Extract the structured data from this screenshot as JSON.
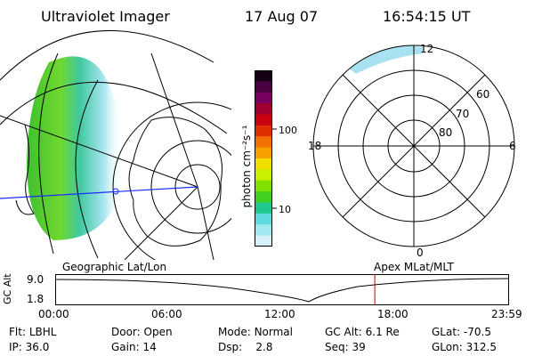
{
  "header": {
    "title": "Ultraviolet Imager",
    "date": "17 Aug 07",
    "time": "16:54:15 UT"
  },
  "colorbar": {
    "unit_label": "photon cm⁻²s⁻¹",
    "ticks": [
      "100",
      "10"
    ],
    "colors": [
      "#140014",
      "#4a0040",
      "#7a0060",
      "#a00030",
      "#c80010",
      "#e03000",
      "#f07000",
      "#f8a000",
      "#f0e000",
      "#c8f000",
      "#80e000",
      "#40d020",
      "#20c890",
      "#60d8e0",
      "#a0e8f0",
      "#d8f0f8"
    ]
  },
  "geo_map": {
    "caption": "Geographic Lat/Lon"
  },
  "polar_map": {
    "caption": "Apex MLat/MLT",
    "mlt_labels": {
      "top": "12",
      "left": "18",
      "right": "6",
      "bottom": "0"
    },
    "lat_labels": [
      "60",
      "70",
      "80"
    ]
  },
  "altitude_plot": {
    "ylabel": "GC Alt",
    "y_ticks": [
      "9.0",
      "1.8"
    ],
    "x_ticks": [
      "00:00",
      "06:00",
      "12:00",
      "18:00",
      "23:59"
    ],
    "marker_time_hours": 16.9
  },
  "footer": {
    "row1": [
      {
        "key": "Flt:",
        "value": "LBHL"
      },
      {
        "key": "Door:",
        "value": "Open"
      },
      {
        "key": "Mode:",
        "value": "Normal"
      },
      {
        "key": "GC Alt:",
        "value": "6.1 Re"
      },
      {
        "key": "GLat:",
        "value": "-70.5"
      }
    ],
    "row2": [
      {
        "key": "IP:",
        "value": "36.0"
      },
      {
        "key": "Gain:",
        "value": "14"
      },
      {
        "key": "Dsp:",
        "value": "2.8"
      },
      {
        "key": "Seq:",
        "value": "39"
      },
      {
        "key": "GLon:",
        "value": "312.5"
      }
    ]
  }
}
